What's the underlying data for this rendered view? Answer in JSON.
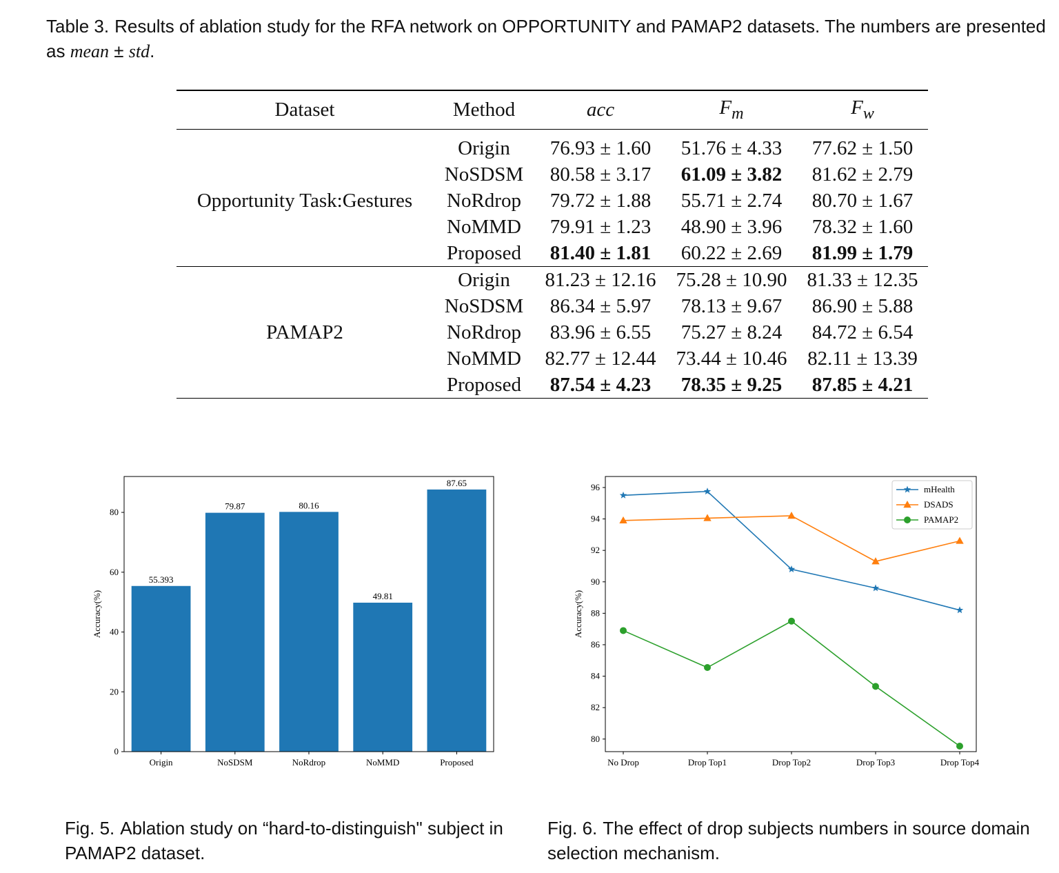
{
  "table_caption": {
    "label": "Table 3.",
    "text_before": "Results of ablation study for the RFA network on OPPORTUNITY and PAMAP2 datasets. The numbers are presented as",
    "emph_mean": "mean",
    "pm": "±",
    "emph_std": "std",
    "end": "."
  },
  "table": {
    "headers": {
      "dataset": "Dataset",
      "method": "Method",
      "acc": "acc",
      "fm_base": "F",
      "fm_sub": "m",
      "fw_base": "F",
      "fw_sub": "w"
    },
    "groups": [
      {
        "dataset": "Opportunity Task:Gestures",
        "rows": [
          {
            "method": "Origin",
            "acc": "76.93 ± 1.60",
            "fm": "51.76 ± 4.33",
            "fw": "77.62 ± 1.50"
          },
          {
            "method": "NoSDSM",
            "acc": "80.58 ± 3.17",
            "fm": "61.09 ± 3.82",
            "fw": "81.62 ± 2.79"
          },
          {
            "method": "NoRdrop",
            "acc": "79.72 ± 1.88",
            "fm": "55.71 ± 2.74",
            "fw": "80.70 ± 1.67"
          },
          {
            "method": "NoMMD",
            "acc": "79.91 ± 1.23",
            "fm": "48.90 ± 3.96",
            "fw": "78.32 ± 1.60"
          },
          {
            "method": "Proposed",
            "acc": "81.40 ± 1.81",
            "fm": "60.22 ± 2.69",
            "fw": "81.99 ± 1.79"
          }
        ]
      },
      {
        "dataset": "PAMAP2",
        "rows": [
          {
            "method": "Origin",
            "acc": "81.23 ± 12.16",
            "fm": "75.28 ± 10.90",
            "fw": "81.33 ± 12.35"
          },
          {
            "method": "NoSDSM",
            "acc": "86.34 ± 5.97",
            "fm": "78.13 ± 9.67",
            "fw": "86.90 ± 5.88"
          },
          {
            "method": "NoRdrop",
            "acc": "83.96 ± 6.55",
            "fm": "75.27 ± 8.24",
            "fw": "84.72 ± 6.54"
          },
          {
            "method": "NoMMD",
            "acc": "82.77 ± 12.44",
            "fm": "73.44 ± 10.46",
            "fw": "82.11 ± 13.39"
          },
          {
            "method": "Proposed",
            "acc": "87.54 ± 4.23",
            "fm": "78.35 ± 9.25",
            "fw": "87.85 ± 4.21"
          }
        ]
      }
    ]
  },
  "fig5_caption": {
    "label": "Fig. 5.",
    "text": "Ablation study on “hard-to-distinguish\" subject in PAMAP2 dataset."
  },
  "fig6_caption": {
    "label": "Fig. 6.",
    "text": "The effect of drop subjects numbers in source domain selection mechanism."
  },
  "chart_data": [
    {
      "type": "bar",
      "categories": [
        "Origin",
        "NoSDSM",
        "NoRdrop",
        "NoMMD",
        "Proposed"
      ],
      "values": [
        55.393,
        79.87,
        80.16,
        49.81,
        87.65
      ],
      "value_labels": [
        "55.393",
        "79.87",
        "80.16",
        "49.81",
        "87.65"
      ],
      "ylabel": "Accuracy(%)",
      "ylim": [
        0,
        92
      ],
      "yticks": [
        0,
        20,
        40,
        60,
        80
      ],
      "color": "#1f77b4",
      "grid": false
    },
    {
      "type": "line",
      "categories": [
        "No Drop",
        "Drop Top1",
        "Drop Top2",
        "Drop Top3",
        "Drop Top4"
      ],
      "ylabel": "Accuracy(%)",
      "ylim": [
        79.2,
        96.7
      ],
      "yticks": [
        80,
        82,
        84,
        86,
        88,
        90,
        92,
        94,
        96
      ],
      "legend_position": "top-right",
      "grid": false,
      "series": [
        {
          "name": "mHealth",
          "values": [
            95.5,
            95.75,
            90.8,
            89.6,
            88.2
          ],
          "color": "#1f77b4",
          "marker": "star"
        },
        {
          "name": "DSADS",
          "values": [
            93.9,
            94.05,
            94.2,
            91.3,
            92.6
          ],
          "color": "#ff7f0e",
          "marker": "triangle"
        },
        {
          "name": "PAMAP2",
          "values": [
            86.9,
            84.55,
            87.5,
            83.35,
            79.55
          ],
          "color": "#2ca02c",
          "marker": "circle"
        }
      ]
    }
  ]
}
